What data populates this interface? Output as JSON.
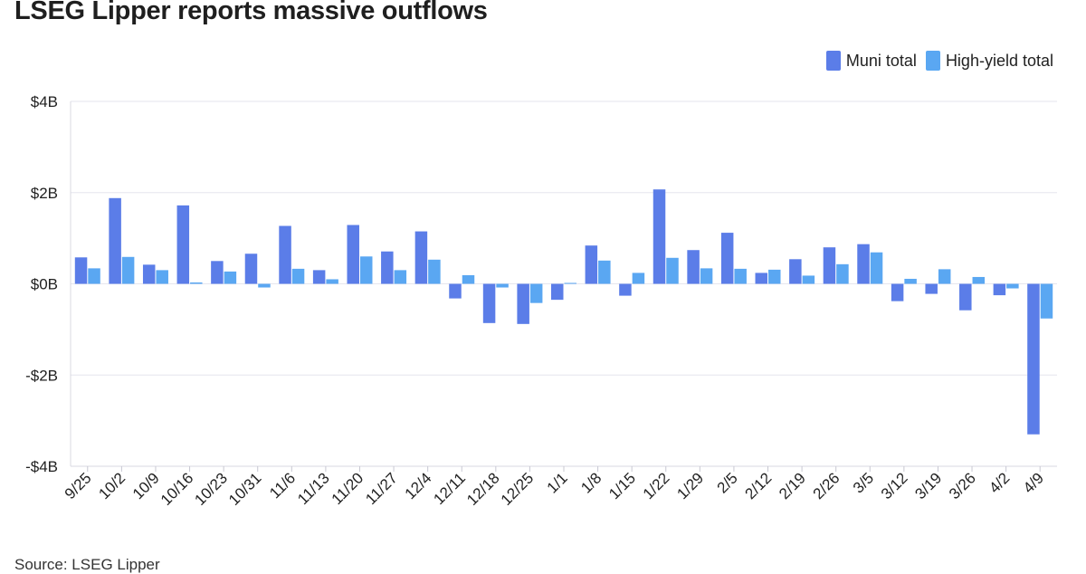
{
  "chart_data": {
    "type": "bar",
    "title": "LSEG Lipper reports massive outflows",
    "xlabel": "",
    "ylabel": "",
    "categories": [
      "9/25",
      "10/2",
      "10/9",
      "10/16",
      "10/23",
      "10/31",
      "11/6",
      "11/13",
      "11/20",
      "11/27",
      "12/4",
      "12/11",
      "12/18",
      "12/25",
      "1/1",
      "1/8",
      "1/15",
      "1/22",
      "1/29",
      "2/5",
      "2/12",
      "2/19",
      "2/26",
      "3/5",
      "3/12",
      "3/19",
      "3/26",
      "4/2",
      "4/9"
    ],
    "series": [
      {
        "name": "Muni total",
        "color": "#5b7de8",
        "values": [
          0.58,
          1.88,
          0.42,
          1.72,
          0.5,
          0.66,
          1.27,
          0.3,
          1.29,
          0.71,
          1.15,
          -0.32,
          -0.86,
          -0.88,
          -0.35,
          0.84,
          -0.26,
          2.07,
          0.74,
          1.12,
          0.24,
          0.54,
          0.8,
          0.87,
          -0.38,
          -0.22,
          -0.58,
          -0.25,
          -3.3
        ]
      },
      {
        "name": "High-yield total",
        "color": "#5aa7f2",
        "values": [
          0.34,
          0.59,
          0.3,
          0.03,
          0.27,
          -0.08,
          0.33,
          0.1,
          0.6,
          0.3,
          0.53,
          0.19,
          -0.08,
          -0.42,
          0.02,
          0.51,
          0.24,
          0.57,
          0.34,
          0.33,
          0.31,
          0.18,
          0.43,
          0.69,
          0.11,
          0.32,
          0.15,
          -0.1,
          -0.76
        ]
      }
    ],
    "ylim": [
      -4,
      4
    ],
    "yticks": [
      4,
      2,
      0,
      -2,
      -4
    ],
    "ytick_labels": [
      "$4B",
      "$2B",
      "$0B",
      "-$2B",
      "-$4B"
    ],
    "grid": true,
    "legend_position": "top-right",
    "source": "Source: LSEG Lipper"
  }
}
